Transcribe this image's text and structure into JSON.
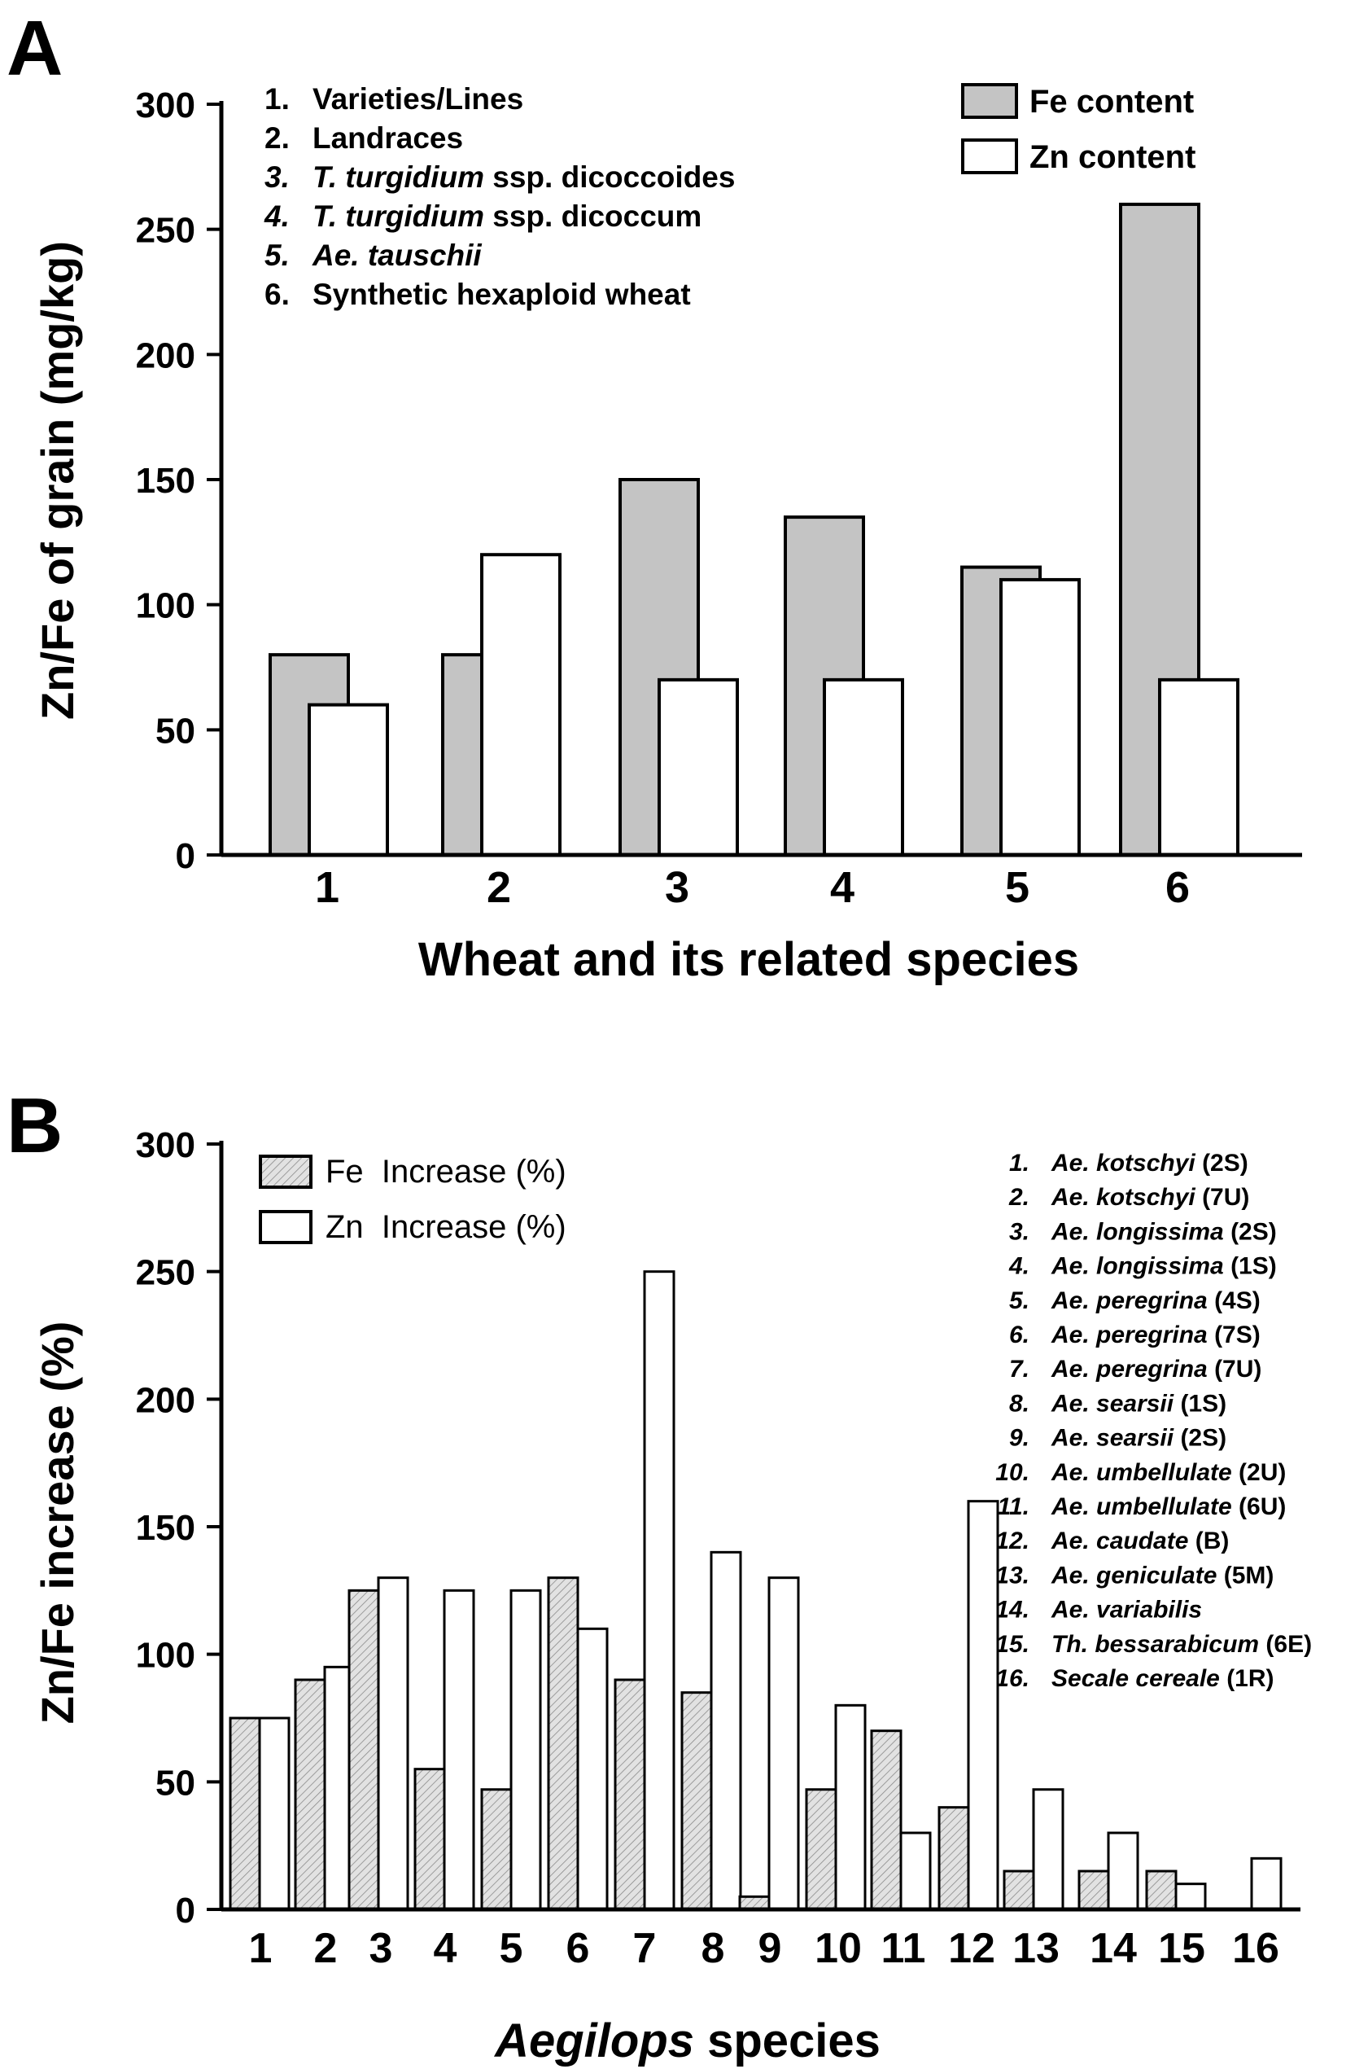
{
  "panels": [
    {
      "letter": "A",
      "ylabel": "Zn/Fe of grain (mg/kg)",
      "xlabel": "Wheat and its related species",
      "legend": [
        {
          "label": "Fe content",
          "style": "gray"
        },
        {
          "label": "Zn content",
          "style": "white"
        }
      ],
      "key": [
        {
          "num": "1.",
          "parts": [
            {
              "t": "Varieties/Lines",
              "i": false
            }
          ]
        },
        {
          "num": "2.",
          "parts": [
            {
              "t": "Landraces",
              "i": false
            }
          ]
        },
        {
          "num": "3.",
          "parts": [
            {
              "t": "T. turgidium",
              "i": true
            },
            {
              "t": " ssp. dicoccoides",
              "i": false
            }
          ]
        },
        {
          "num": "4.",
          "parts": [
            {
              "t": "T. turgidium",
              "i": true
            },
            {
              "t": " ssp. dicoccum",
              "i": false
            }
          ]
        },
        {
          "num": "5.",
          "parts": [
            {
              "t": "Ae. tauschii",
              "i": true
            }
          ]
        },
        {
          "num": "6.",
          "parts": [
            {
              "t": "Synthetic hexaploid wheat",
              "i": false
            }
          ]
        }
      ]
    },
    {
      "letter": "B",
      "ylabel": "Zn/Fe increase (%)",
      "xlabel_italic": "Aegilops",
      "xlabel_rest": " species",
      "legend": [
        {
          "label": "Fe  Increase (%)",
          "style": "hatch"
        },
        {
          "label": "Zn  Increase (%)",
          "style": "white"
        }
      ],
      "key": [
        {
          "num": "1.",
          "sp": "Ae. kotschyi",
          "chr": " (2S)"
        },
        {
          "num": "2.",
          "sp": "Ae. kotschyi",
          "chr": " (7U)"
        },
        {
          "num": "3.",
          "sp": "Ae. longissima",
          "chr": " (2S)"
        },
        {
          "num": "4.",
          "sp": "Ae. longissima",
          "chr": " (1S)"
        },
        {
          "num": "5.",
          "sp": "Ae. peregrina",
          "chr": " (4S)"
        },
        {
          "num": "6.",
          "sp": "Ae. peregrina",
          "chr": " (7S)"
        },
        {
          "num": "7.",
          "sp": "Ae. peregrina",
          "chr": " (7U)"
        },
        {
          "num": "8.",
          "sp": "Ae. searsii",
          "chr": " (1S)"
        },
        {
          "num": "9.",
          "sp": "Ae. searsii",
          "chr": " (2S)"
        },
        {
          "num": "10.",
          "sp": "Ae. umbellulate",
          "chr": " (2U)"
        },
        {
          "num": "11.",
          "sp": "Ae. umbellulate",
          "chr": " (6U)"
        },
        {
          "num": "12.",
          "sp": "Ae. caudate",
          "chr": " (B)"
        },
        {
          "num": "13.",
          "sp": "Ae. geniculate",
          "chr": " (5M)"
        },
        {
          "num": "14.",
          "sp": "Ae. variabilis",
          "chr": ""
        },
        {
          "num": "15.",
          "sp": "Th. bessarabicum",
          "chr": " (6E)"
        },
        {
          "num": "16.",
          "sp": "Secale cereale",
          "chr": " (1R)"
        }
      ]
    }
  ],
  "chart_data": [
    {
      "type": "bar",
      "categories": [
        "1",
        "2",
        "3",
        "4",
        "5",
        "6"
      ],
      "series": [
        {
          "name": "Fe content",
          "values": [
            80,
            80,
            150,
            135,
            115,
            260
          ]
        },
        {
          "name": "Zn content",
          "values": [
            60,
            120,
            70,
            70,
            110,
            70
          ]
        }
      ],
      "ylabel": "Zn/Fe of grain (mg/kg)",
      "xlabel": "Wheat and its related species",
      "yticks": [
        0,
        50,
        100,
        150,
        200,
        250,
        300
      ],
      "ylim": [
        0,
        300
      ],
      "legend_position": "top-right",
      "colors": {
        "fe": "#c4c4c4",
        "zn": "#ffffff"
      }
    },
    {
      "type": "bar",
      "categories": [
        "1",
        "2",
        "3",
        "4",
        "5",
        "6",
        "7",
        "8",
        "9",
        "10",
        "11",
        "12",
        "13",
        "14",
        "15",
        "16"
      ],
      "series": [
        {
          "name": "Fe  Increase (%)",
          "values": [
            75,
            90,
            125,
            55,
            47,
            130,
            90,
            85,
            5,
            47,
            70,
            40,
            15,
            15,
            15,
            0
          ]
        },
        {
          "name": "Zn  Increase (%)",
          "values": [
            75,
            95,
            130,
            125,
            125,
            110,
            250,
            140,
            130,
            80,
            30,
            160,
            47,
            30,
            10,
            20
          ]
        }
      ],
      "ylabel": "Zn/Fe increase (%)",
      "xlabel": "Aegilops species",
      "yticks": [
        0,
        50,
        100,
        150,
        200,
        250,
        300
      ],
      "ylim": [
        0,
        300
      ],
      "legend_position": "top-left",
      "colors": {
        "fe": "#d8d8d8",
        "zn": "#ffffff"
      }
    }
  ]
}
